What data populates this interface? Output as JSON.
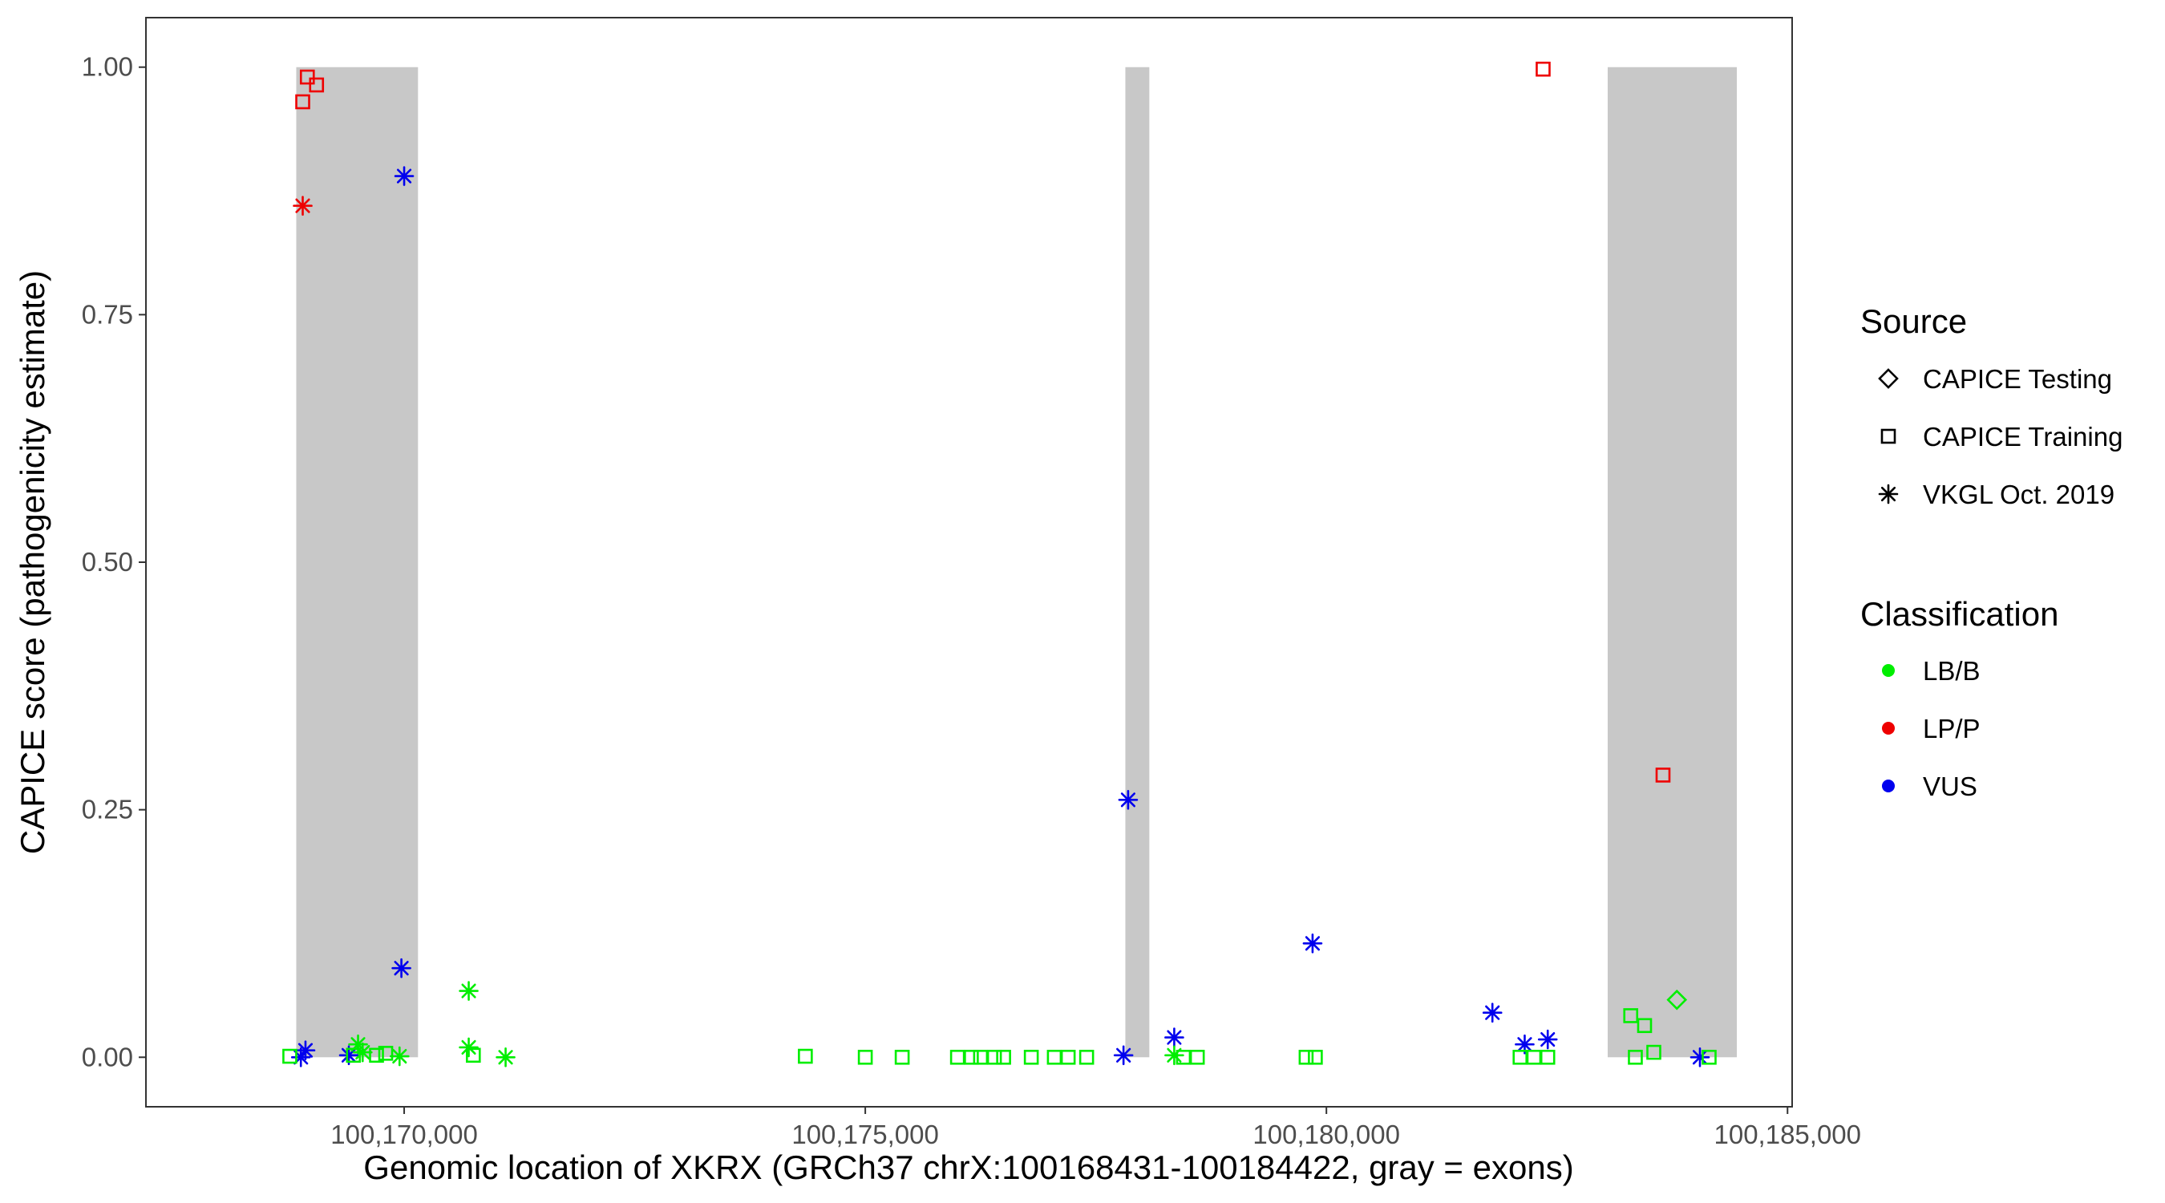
{
  "chart_data": {
    "type": "scatter",
    "xlabel": "Genomic location of XKRX (GRCh37 chrX:100168431-100184422, gray = exons)",
    "ylabel": "CAPICE score (pathogenicity estimate)",
    "xlim": [
      100167200,
      100185050
    ],
    "ylim": [
      -0.05,
      1.05
    ],
    "x_ticks": [
      100170000,
      100175000,
      100180000,
      100185000
    ],
    "x_tick_labels": [
      "100,170,000",
      "100,175,000",
      "100,180,000",
      "100,185,000"
    ],
    "y_ticks": [
      0,
      0.25,
      0.5,
      0.75,
      1.0
    ],
    "y_tick_labels": [
      "0.00",
      "0.25",
      "0.50",
      "0.75",
      "1.00"
    ],
    "grid": false,
    "exons": [
      {
        "start": 100168830,
        "end": 100170150
      },
      {
        "start": 100177820,
        "end": 100178080
      },
      {
        "start": 100183050,
        "end": 100184450
      }
    ],
    "exon_color": "#c8c8c8",
    "legends": {
      "source": {
        "title": "Source",
        "items": [
          {
            "label": "CAPICE Testing",
            "shape": "diamond"
          },
          {
            "label": "CAPICE Training",
            "shape": "square"
          },
          {
            "label": "VKGL Oct. 2019",
            "shape": "asterisk"
          }
        ]
      },
      "classification": {
        "title": "Classification",
        "items": [
          {
            "label": "LB/B",
            "color": "#00ee00"
          },
          {
            "label": "LP/P",
            "color": "#ee0000"
          },
          {
            "label": "VUS",
            "color": "#0000ee"
          }
        ]
      }
    },
    "points": [
      {
        "x": 100168900,
        "y": 0.965,
        "shape": "square",
        "cls": "LP/P"
      },
      {
        "x": 100168950,
        "y": 0.99,
        "shape": "square",
        "cls": "LP/P"
      },
      {
        "x": 100169050,
        "y": 0.982,
        "shape": "square",
        "cls": "LP/P"
      },
      {
        "x": 100168900,
        "y": 0.86,
        "shape": "asterisk",
        "cls": "LP/P"
      },
      {
        "x": 100170000,
        "y": 0.89,
        "shape": "asterisk",
        "cls": "VUS"
      },
      {
        "x": 100169970,
        "y": 0.09,
        "shape": "asterisk",
        "cls": "VUS"
      },
      {
        "x": 100168930,
        "y": 0.007,
        "shape": "asterisk",
        "cls": "VUS"
      },
      {
        "x": 100168880,
        "y": 0.0,
        "shape": "asterisk",
        "cls": "VUS"
      },
      {
        "x": 100169400,
        "y": 0.002,
        "shape": "asterisk",
        "cls": "VUS"
      },
      {
        "x": 100168760,
        "y": 0.001,
        "shape": "square",
        "cls": "LB/B"
      },
      {
        "x": 100169500,
        "y": 0.013,
        "shape": "asterisk",
        "cls": "LB/B"
      },
      {
        "x": 100169550,
        "y": 0.005,
        "shape": "asterisk",
        "cls": "LB/B"
      },
      {
        "x": 100169450,
        "y": 0.002,
        "shape": "square",
        "cls": "LB/B"
      },
      {
        "x": 100169700,
        "y": 0.002,
        "shape": "square",
        "cls": "LB/B"
      },
      {
        "x": 100169800,
        "y": 0.004,
        "shape": "square",
        "cls": "LB/B"
      },
      {
        "x": 100169950,
        "y": 0.001,
        "shape": "asterisk",
        "cls": "LB/B"
      },
      {
        "x": 100170700,
        "y": 0.067,
        "shape": "asterisk",
        "cls": "LB/B"
      },
      {
        "x": 100170700,
        "y": 0.01,
        "shape": "asterisk",
        "cls": "LB/B"
      },
      {
        "x": 100170750,
        "y": 0.002,
        "shape": "square",
        "cls": "LB/B"
      },
      {
        "x": 100171100,
        "y": 0.0,
        "shape": "asterisk",
        "cls": "LB/B"
      },
      {
        "x": 100174350,
        "y": 0.001,
        "shape": "square",
        "cls": "LB/B"
      },
      {
        "x": 100175000,
        "y": 0.0,
        "shape": "square",
        "cls": "LB/B"
      },
      {
        "x": 100175400,
        "y": 0.0,
        "shape": "square",
        "cls": "LB/B"
      },
      {
        "x": 100176000,
        "y": 0.0,
        "shape": "square",
        "cls": "LB/B"
      },
      {
        "x": 100176150,
        "y": 0.0,
        "shape": "square",
        "cls": "LB/B"
      },
      {
        "x": 100176250,
        "y": 0.0,
        "shape": "square",
        "cls": "LB/B"
      },
      {
        "x": 100176400,
        "y": 0.0,
        "shape": "square",
        "cls": "LB/B"
      },
      {
        "x": 100176500,
        "y": 0.0,
        "shape": "square",
        "cls": "LB/B"
      },
      {
        "x": 100176800,
        "y": 0.0,
        "shape": "square",
        "cls": "LB/B"
      },
      {
        "x": 100177050,
        "y": 0.0,
        "shape": "square",
        "cls": "LB/B"
      },
      {
        "x": 100177200,
        "y": 0.0,
        "shape": "square",
        "cls": "LB/B"
      },
      {
        "x": 100177400,
        "y": 0.0,
        "shape": "square",
        "cls": "LB/B"
      },
      {
        "x": 100177850,
        "y": 0.26,
        "shape": "asterisk",
        "cls": "VUS"
      },
      {
        "x": 100177800,
        "y": 0.002,
        "shape": "asterisk",
        "cls": "VUS"
      },
      {
        "x": 100178350,
        "y": 0.02,
        "shape": "asterisk",
        "cls": "VUS"
      },
      {
        "x": 100178350,
        "y": 0.002,
        "shape": "asterisk",
        "cls": "LB/B"
      },
      {
        "x": 100178450,
        "y": 0.0,
        "shape": "square",
        "cls": "LB/B"
      },
      {
        "x": 100178600,
        "y": 0.0,
        "shape": "square",
        "cls": "LB/B"
      },
      {
        "x": 100179850,
        "y": 0.115,
        "shape": "asterisk",
        "cls": "VUS"
      },
      {
        "x": 100179780,
        "y": 0.0,
        "shape": "square",
        "cls": "LB/B"
      },
      {
        "x": 100179880,
        "y": 0.0,
        "shape": "square",
        "cls": "LB/B"
      },
      {
        "x": 100181800,
        "y": 0.045,
        "shape": "asterisk",
        "cls": "VUS"
      },
      {
        "x": 100182150,
        "y": 0.013,
        "shape": "asterisk",
        "cls": "VUS"
      },
      {
        "x": 100182400,
        "y": 0.018,
        "shape": "asterisk",
        "cls": "VUS"
      },
      {
        "x": 100182100,
        "y": 0.0,
        "shape": "square",
        "cls": "LB/B"
      },
      {
        "x": 100182250,
        "y": 0.0,
        "shape": "square",
        "cls": "LB/B"
      },
      {
        "x": 100182400,
        "y": 0.0,
        "shape": "square",
        "cls": "LB/B"
      },
      {
        "x": 100182350,
        "y": 0.998,
        "shape": "square",
        "cls": "LP/P"
      },
      {
        "x": 100183650,
        "y": 0.285,
        "shape": "square",
        "cls": "LP/P"
      },
      {
        "x": 100183300,
        "y": 0.042,
        "shape": "square",
        "cls": "LB/B"
      },
      {
        "x": 100183450,
        "y": 0.032,
        "shape": "square",
        "cls": "LB/B"
      },
      {
        "x": 100183800,
        "y": 0.058,
        "shape": "diamond",
        "cls": "LB/B"
      },
      {
        "x": 100183550,
        "y": 0.005,
        "shape": "square",
        "cls": "LB/B"
      },
      {
        "x": 100183350,
        "y": 0.0,
        "shape": "square",
        "cls": "LB/B"
      },
      {
        "x": 100184050,
        "y": 0.0,
        "shape": "asterisk",
        "cls": "VUS"
      },
      {
        "x": 100184150,
        "y": 0.0,
        "shape": "square",
        "cls": "LB/B"
      }
    ]
  }
}
